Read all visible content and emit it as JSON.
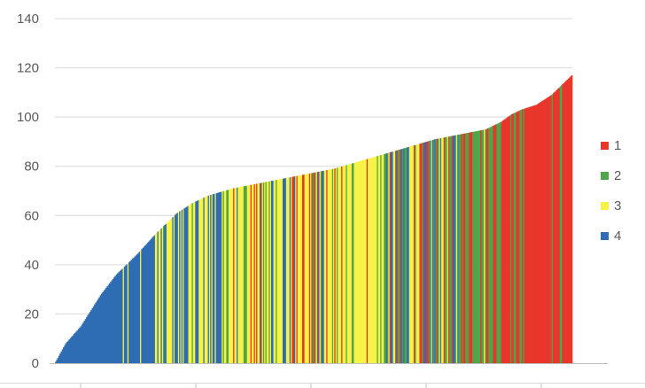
{
  "chart_data": {
    "type": "bar",
    "title": "",
    "xlabel": "",
    "ylabel": "",
    "ylim": [
      0,
      140
    ],
    "yticks": [
      0,
      20,
      40,
      60,
      80,
      100,
      120,
      140
    ],
    "y_tick_labels": [
      "0",
      "20",
      "40",
      "60",
      "80",
      "100",
      "120",
      "140"
    ],
    "bar_count": 450,
    "sort": "ascending",
    "grid": true,
    "legend_position": "right",
    "value_profile": [
      [
        0,
        0.5
      ],
      [
        10,
        8
      ],
      [
        25,
        15
      ],
      [
        45,
        28
      ],
      [
        60,
        36
      ],
      [
        80,
        44
      ],
      [
        100,
        53
      ],
      [
        120,
        61
      ],
      [
        135,
        65
      ],
      [
        150,
        68
      ],
      [
        175,
        71
      ],
      [
        200,
        73
      ],
      [
        225,
        75
      ],
      [
        250,
        77
      ],
      [
        275,
        79
      ],
      [
        300,
        82
      ],
      [
        325,
        85
      ],
      [
        350,
        88
      ],
      [
        375,
        91
      ],
      [
        400,
        93
      ],
      [
        425,
        95
      ],
      [
        440,
        98
      ],
      [
        450,
        101
      ],
      [
        460,
        103
      ],
      [
        475,
        105
      ],
      [
        490,
        109
      ],
      [
        500,
        113
      ],
      [
        510,
        117
      ]
    ],
    "series": [
      {
        "name": "1",
        "color": "#E8362A"
      },
      {
        "name": "2",
        "color": "#4FA64A"
      },
      {
        "name": "3",
        "color": "#F7F246"
      },
      {
        "name": "4",
        "color": "#2E6DB4"
      }
    ]
  }
}
